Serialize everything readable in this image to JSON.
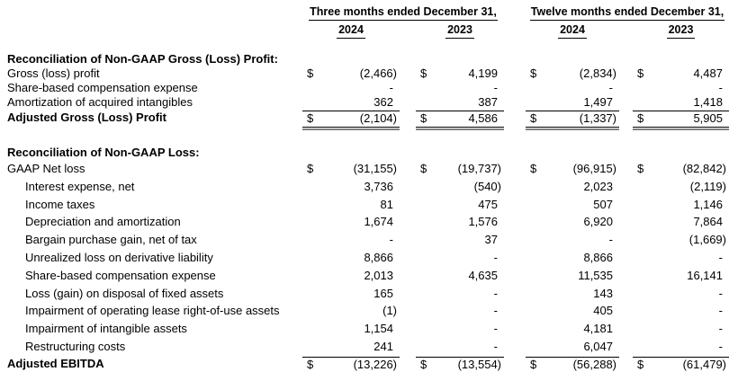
{
  "colors": {
    "text": "#000000",
    "rule": "#000000",
    "double_rule_lower": "#808080",
    "background": "#ffffff"
  },
  "header": {
    "col_groups": [
      {
        "label": "Three months ended December 31,",
        "years": [
          "2024",
          "2023"
        ]
      },
      {
        "label": "Twelve months ended December 31,",
        "years": [
          "2024",
          "2023"
        ]
      }
    ]
  },
  "sections": [
    {
      "title": "Reconciliation of Non-GAAP Gross (Loss) Profit:",
      "rows": [
        {
          "label": "Gross (loss) profit",
          "indent": false,
          "dollar": true,
          "values": [
            "(2,466)",
            "4,199",
            "(2,834)",
            "4,487"
          ]
        },
        {
          "label": "Share-based compensation expense",
          "indent": false,
          "dollar": false,
          "values": [
            "-",
            "-",
            "-",
            "-"
          ]
        },
        {
          "label": "Amortization of acquired intangibles",
          "indent": false,
          "dollar": false,
          "values": [
            "362",
            "387",
            "1,497",
            "1,418"
          ]
        }
      ],
      "total": {
        "label": "Adjusted Gross (Loss) Profit",
        "dollar": true,
        "values": [
          "(2,104)",
          "4,586",
          "(1,337)",
          "5,905"
        ]
      }
    },
    {
      "title": "Reconciliation of Non-GAAP Loss:",
      "rows": [
        {
          "label": "GAAP Net loss",
          "indent": false,
          "dollar": true,
          "values": [
            "(31,155)",
            "(19,737)",
            "(96,915)",
            "(82,842)"
          ]
        },
        {
          "label": "Interest expense, net",
          "indent": true,
          "dollar": false,
          "values": [
            "3,736",
            "(540)",
            "2,023",
            "(2,119)"
          ]
        },
        {
          "label": "Income taxes",
          "indent": true,
          "dollar": false,
          "values": [
            "81",
            "475",
            "507",
            "1,146"
          ]
        },
        {
          "label": "Depreciation and amortization",
          "indent": true,
          "dollar": false,
          "values": [
            "1,674",
            "1,576",
            "6,920",
            "7,864"
          ]
        },
        {
          "label": "Bargain purchase gain, net of tax",
          "indent": true,
          "dollar": false,
          "values": [
            "-",
            "37",
            "-",
            "(1,669)"
          ]
        },
        {
          "label": "Unrealized loss on derivative liability",
          "indent": true,
          "dollar": false,
          "values": [
            "8,866",
            "-",
            "8,866",
            "-"
          ]
        },
        {
          "label": "Share-based compensation expense",
          "indent": true,
          "dollar": false,
          "values": [
            "2,013",
            "4,635",
            "11,535",
            "16,141"
          ]
        },
        {
          "label": "Loss (gain) on disposal of fixed assets",
          "indent": true,
          "dollar": false,
          "values": [
            "165",
            "-",
            "143",
            "-"
          ]
        },
        {
          "label": "Impairment of operating lease right-of-use assets",
          "indent": true,
          "dollar": false,
          "values": [
            "(1)",
            "-",
            "405",
            "-"
          ]
        },
        {
          "label": "Impairment of intangible assets",
          "indent": true,
          "dollar": false,
          "values": [
            "1,154",
            "-",
            "4,181",
            "-"
          ]
        },
        {
          "label": "Restructuring costs",
          "indent": true,
          "dollar": false,
          "values": [
            "241",
            "-",
            "6,047",
            "-"
          ]
        }
      ],
      "total": {
        "label": "Adjusted EBITDA",
        "dollar": true,
        "values": [
          "(13,226)",
          "(13,554)",
          "(56,288)",
          "(61,479)"
        ]
      }
    }
  ]
}
